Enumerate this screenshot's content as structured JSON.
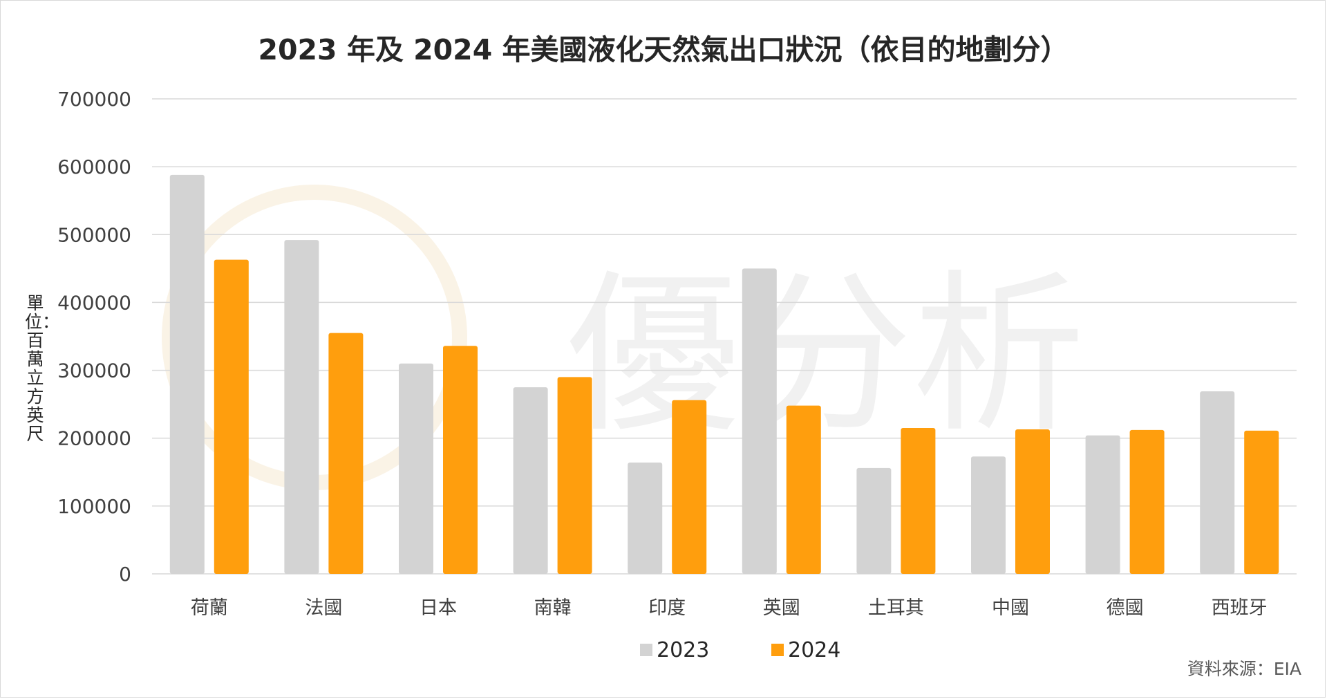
{
  "title": "2023 年及 2024 年美國液化天然氣出口狀況（依目的地劃分）",
  "y_axis_label": "單位：百萬立方英尺",
  "source": "資料來源：EIA",
  "watermark": "優分析",
  "colors": {
    "2023": "#d3d3d3",
    "2024": "#ff9e0d",
    "grid": "#d9d9d9",
    "watermark": "#f1f1f1"
  },
  "chart_data": {
    "type": "bar",
    "title": "2023 年及 2024 年美國液化天然氣出口狀況（依目的地劃分）",
    "xlabel": "",
    "ylabel": "單位：百萬立方英尺",
    "ylim": [
      0,
      700000
    ],
    "yticks": [
      0,
      100000,
      200000,
      300000,
      400000,
      500000,
      600000,
      700000
    ],
    "grid": true,
    "legend_position": "bottom",
    "categories": [
      "荷蘭",
      "法國",
      "日本",
      "南韓",
      "印度",
      "英國",
      "土耳其",
      "中國",
      "德國",
      "西班牙"
    ],
    "series": [
      {
        "name": "2023",
        "color": "#d3d3d3",
        "values": [
          588000,
          492000,
          310000,
          275000,
          164000,
          450000,
          156000,
          173000,
          204000,
          269000
        ]
      },
      {
        "name": "2024",
        "color": "#ff9e0d",
        "values": [
          463000,
          355000,
          336000,
          290000,
          256000,
          248000,
          215000,
          213000,
          212000,
          211000
        ]
      }
    ]
  }
}
